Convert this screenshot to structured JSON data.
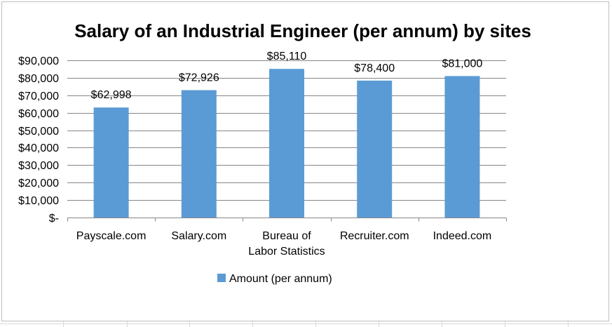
{
  "chart_data": {
    "type": "bar",
    "title": "Salary of an Industrial Engineer (per annum) by sites",
    "xlabel": "",
    "ylabel": "",
    "ylim": [
      0,
      90000
    ],
    "yticks": [
      "$-",
      "$10,000",
      "$20,000",
      "$30,000",
      "$40,000",
      "$50,000",
      "$60,000",
      "$70,000",
      "$80,000",
      "$90,000"
    ],
    "categories": [
      [
        "Payscale.com"
      ],
      [
        "Salary.com"
      ],
      [
        "Bureau of",
        "Labor Statistics"
      ],
      [
        "Recruiter.com"
      ],
      [
        "Indeed.com"
      ]
    ],
    "series": [
      {
        "name": "Amount (per annum)",
        "values": [
          62998,
          72926,
          85110,
          78400,
          81000
        ],
        "labels": [
          "$62,998",
          "$72,926",
          "$85,110",
          "$78,400",
          "$81,000"
        ],
        "color": "#5b9bd5"
      }
    ],
    "grid": true,
    "legend": "bottom",
    "gridline_color": "#868686",
    "axis_color": "#868686"
  }
}
